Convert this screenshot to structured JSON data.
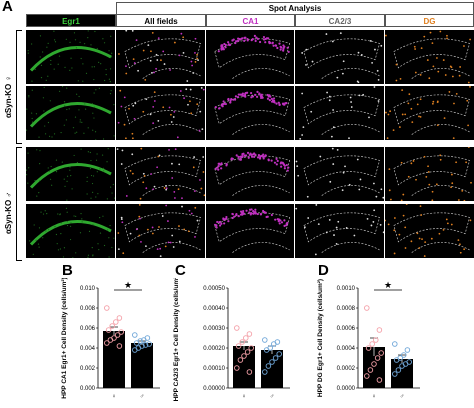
{
  "panel_a": {
    "letter": "A",
    "spot_header": "Spot Analysis",
    "columns": [
      {
        "label": "Egr1",
        "color": "#3ecf3e"
      },
      {
        "label": "All fields",
        "color": "#000000"
      },
      {
        "label": "CA1",
        "color": "#c030c0"
      },
      {
        "label": "CA2/3",
        "color": "#666666"
      },
      {
        "label": "DG",
        "color": "#e08020"
      }
    ],
    "row_groups": [
      {
        "label": "αSyn-KO ♀"
      },
      {
        "label": "αSyn-KO ♂"
      }
    ],
    "field_annotations": [
      "CA2/3",
      "CA1",
      "DG"
    ]
  },
  "charts": {
    "B": {
      "letter": "B",
      "star": "★",
      "male_symbol": "♂",
      "female_symbol": "♀"
    },
    "C": {
      "letter": "C",
      "female_symbol": "♀",
      "male_symbol": "♂"
    },
    "D": {
      "letter": "D",
      "star": "★",
      "female_symbol": "♀",
      "male_symbol": "♂"
    }
  },
  "chart_data": [
    {
      "type": "bar",
      "panel": "B",
      "ylabel": "HPP CA1 Egr1+ Cell Density (cells/um²)",
      "ylim": [
        0,
        0.01
      ],
      "yticks": [
        "0.000",
        "0.002",
        "0.004",
        "0.006",
        "0.008",
        "0.010"
      ],
      "categories": [
        "♀",
        "♂"
      ],
      "values": [
        0.0057,
        0.0045
      ],
      "errors": [
        0.0004,
        0.0002
      ],
      "bar_colors": [
        "#000000",
        "#000000"
      ],
      "point_colors": [
        "#f4a0a8",
        "#6fa6d8"
      ],
      "points": [
        [
          0.008,
          0.007,
          0.0066,
          0.0062,
          0.0058,
          0.0056,
          0.0053,
          0.005,
          0.0048,
          0.0045,
          0.0042
        ],
        [
          0.0053,
          0.005,
          0.0048,
          0.0047,
          0.0045,
          0.0044,
          0.0043,
          0.0042,
          0.004,
          0.0038
        ]
      ],
      "significance": "★"
    },
    {
      "type": "bar",
      "panel": "C",
      "ylabel": "HPP CA2/3 Egr1+ Cell Density (cells/um²)",
      "ylim": [
        0,
        0.0005
      ],
      "yticks": [
        "0.00000",
        "0.00010",
        "0.00020",
        "0.00030",
        "0.00040",
        "0.00050"
      ],
      "categories": [
        "♀",
        "♂"
      ],
      "values": [
        0.00021,
        0.00019
      ],
      "errors": [
        2e-05,
        2e-05
      ],
      "bar_colors": [
        "#000000",
        "#000000"
      ],
      "point_colors": [
        "#f4a0a8",
        "#6fa6d8"
      ],
      "points": [
        [
          0.0003,
          0.00027,
          0.00025,
          0.00023,
          0.00021,
          0.0002,
          0.00018,
          0.00016,
          0.00014,
          0.0001,
          8e-05
        ],
        [
          0.00024,
          0.00023,
          0.00022,
          0.0002,
          0.00019,
          0.00017,
          0.00015,
          0.00013,
          0.00011,
          8e-05
        ]
      ],
      "significance": ""
    },
    {
      "type": "bar",
      "panel": "D",
      "ylabel": "HPP DG Egr1+ Cell Density (cells/um²)",
      "ylim": [
        0,
        0.001
      ],
      "yticks": [
        "0.0000",
        "0.0002",
        "0.0004",
        "0.0006",
        "0.0008",
        "0.0010"
      ],
      "categories": [
        "♀",
        "♂"
      ],
      "values": [
        0.00041,
        0.00029
      ],
      "errors": [
        9e-05,
        4e-05
      ],
      "bar_colors": [
        "#000000",
        "#000000"
      ],
      "point_colors": [
        "#f4a0a8",
        "#6fa6d8"
      ],
      "points": [
        [
          0.0008,
          0.00058,
          0.00048,
          0.00044,
          0.0004,
          0.00035,
          0.0003,
          0.00024,
          0.00018,
          0.00012,
          8e-05
        ],
        [
          0.00044,
          0.00038,
          0.00033,
          0.0003,
          0.00028,
          0.00026,
          0.00024,
          0.00022,
          0.00018,
          0.00014
        ]
      ],
      "significance": "★"
    }
  ]
}
